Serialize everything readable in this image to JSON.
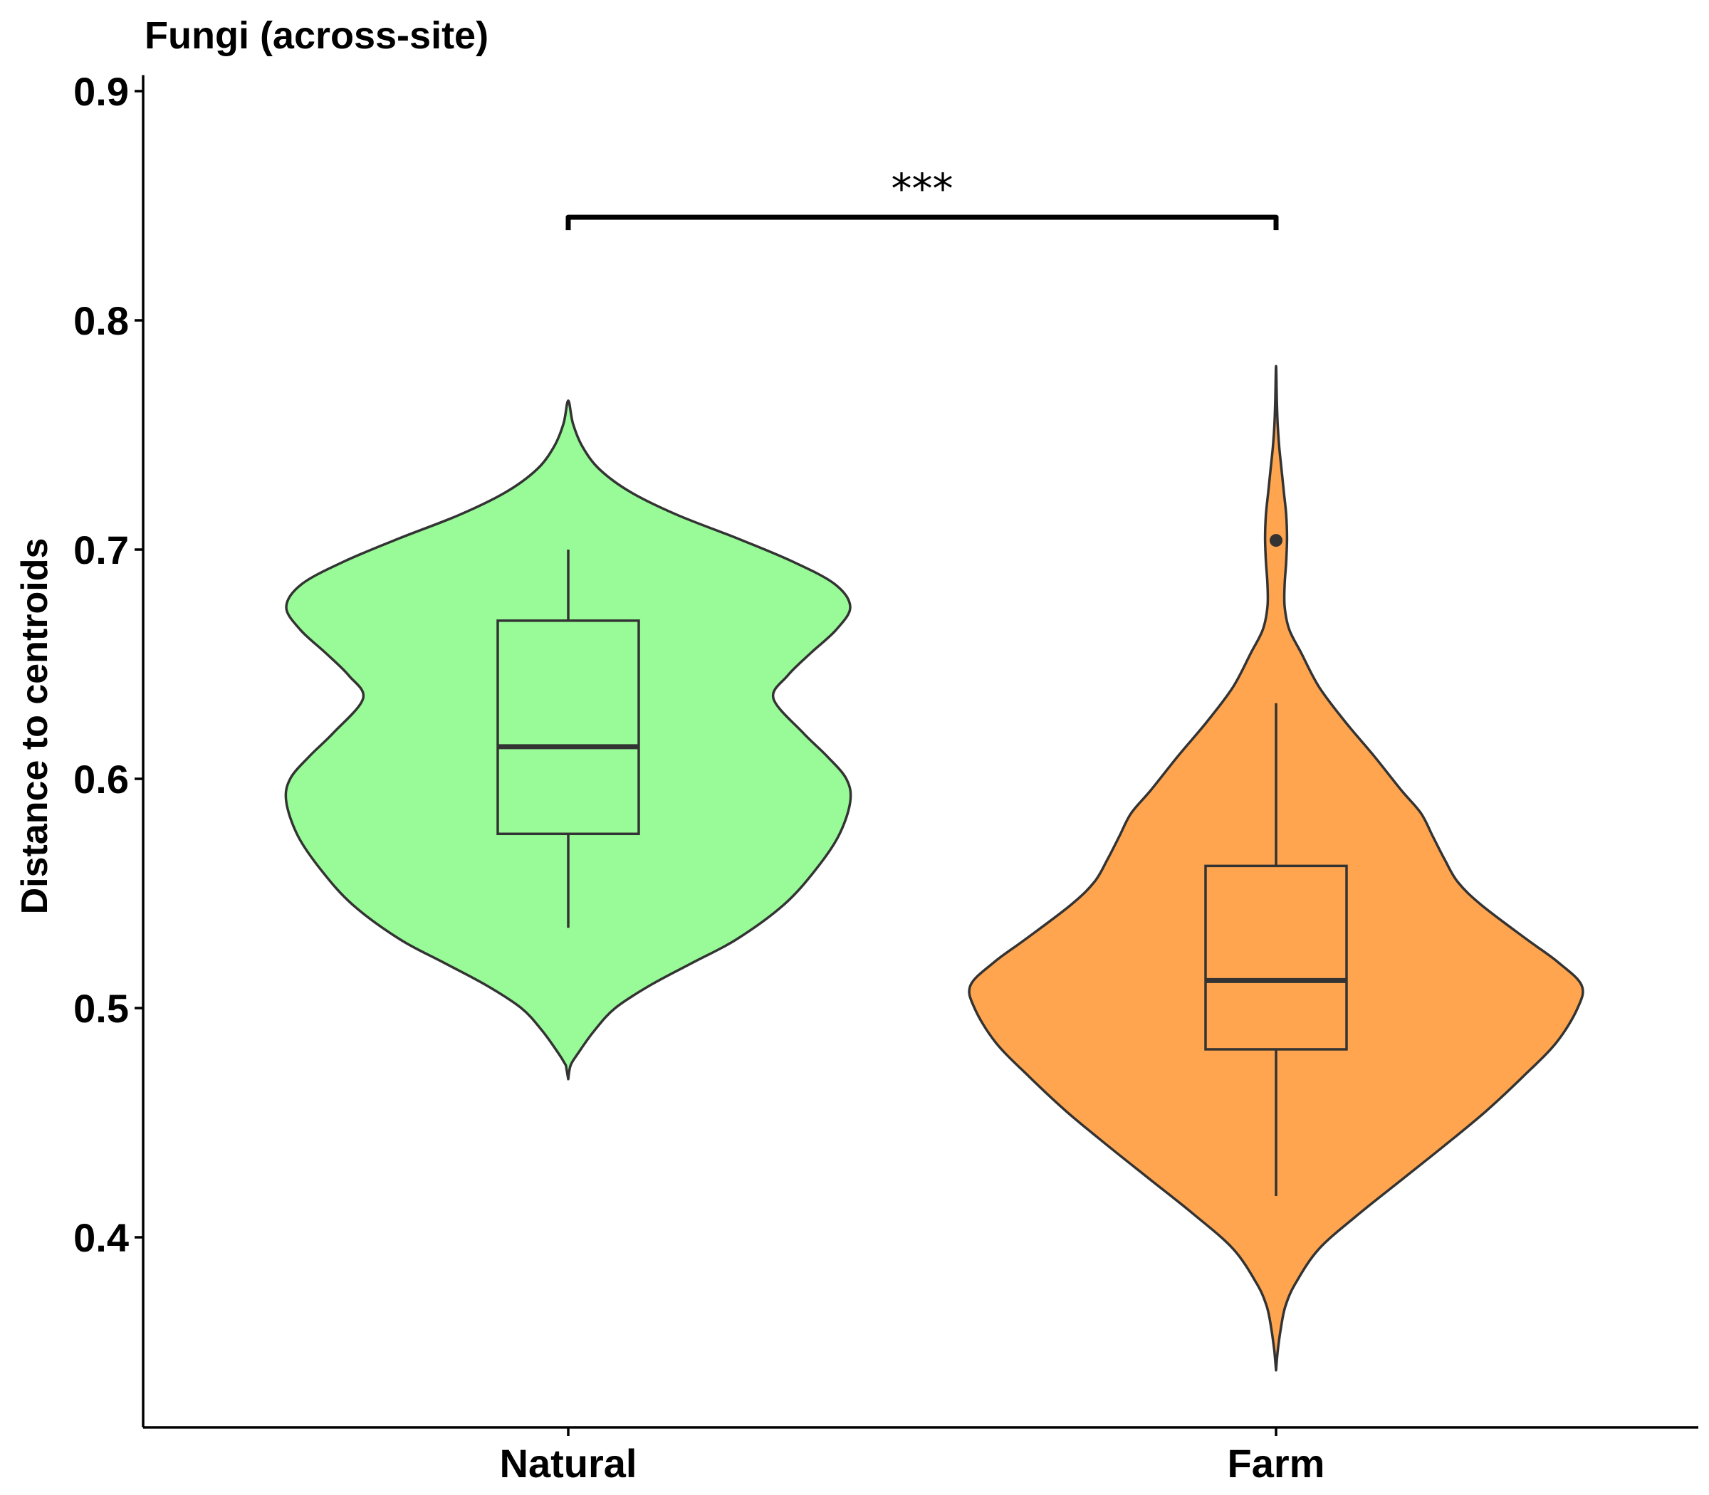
{
  "chart_data": {
    "type": "violin",
    "title": "Fungi (across-site)",
    "xlabel": "",
    "ylabel": "Distance to centroids",
    "ylim": [
      0.318,
      0.907
    ],
    "yticks": [
      0.4,
      0.5,
      0.6,
      0.7,
      0.8,
      0.9
    ],
    "ytick_labels": [
      "0.4",
      "0.5",
      "0.6",
      "0.7",
      "0.8",
      "0.9"
    ],
    "categories": [
      "Natural",
      "Farm"
    ],
    "grid": false,
    "legend": "none",
    "groups": [
      {
        "name": "Natural",
        "color": "#98FB98",
        "violin_halfwidth": [
          [
            0.469,
            0.0
          ],
          [
            0.475,
            0.003
          ],
          [
            0.48,
            0.012
          ],
          [
            0.49,
            0.033
          ],
          [
            0.5,
            0.06
          ],
          [
            0.51,
            0.105
          ],
          [
            0.52,
            0.16
          ],
          [
            0.53,
            0.215
          ],
          [
            0.545,
            0.275
          ],
          [
            0.56,
            0.315
          ],
          [
            0.575,
            0.345
          ],
          [
            0.59,
            0.36
          ],
          [
            0.6,
            0.355
          ],
          [
            0.61,
            0.33
          ],
          [
            0.62,
            0.3
          ],
          [
            0.635,
            0.262
          ],
          [
            0.645,
            0.28
          ],
          [
            0.655,
            0.31
          ],
          [
            0.665,
            0.342
          ],
          [
            0.675,
            0.36
          ],
          [
            0.685,
            0.34
          ],
          [
            0.695,
            0.285
          ],
          [
            0.705,
            0.215
          ],
          [
            0.715,
            0.14
          ],
          [
            0.725,
            0.08
          ],
          [
            0.735,
            0.04
          ],
          [
            0.745,
            0.018
          ],
          [
            0.755,
            0.006
          ],
          [
            0.765,
            0.0
          ]
        ],
        "box": {
          "whisker_low": 0.535,
          "q1": 0.576,
          "median": 0.614,
          "q3": 0.669,
          "whisker_high": 0.7
        },
        "outliers": []
      },
      {
        "name": "Farm",
        "color": "#FFA54F",
        "violin_halfwidth": [
          [
            0.342,
            0.0
          ],
          [
            0.35,
            0.002
          ],
          [
            0.36,
            0.006
          ],
          [
            0.37,
            0.012
          ],
          [
            0.38,
            0.025
          ],
          [
            0.395,
            0.055
          ],
          [
            0.41,
            0.105
          ],
          [
            0.425,
            0.16
          ],
          [
            0.44,
            0.215
          ],
          [
            0.455,
            0.268
          ],
          [
            0.47,
            0.315
          ],
          [
            0.485,
            0.358
          ],
          [
            0.5,
            0.385
          ],
          [
            0.51,
            0.39
          ],
          [
            0.52,
            0.36
          ],
          [
            0.53,
            0.32
          ],
          [
            0.545,
            0.262
          ],
          [
            0.555,
            0.232
          ],
          [
            0.565,
            0.215
          ],
          [
            0.575,
            0.2
          ],
          [
            0.585,
            0.185
          ],
          [
            0.595,
            0.16
          ],
          [
            0.61,
            0.125
          ],
          [
            0.625,
            0.088
          ],
          [
            0.64,
            0.055
          ],
          [
            0.655,
            0.032
          ],
          [
            0.665,
            0.017
          ],
          [
            0.675,
            0.011
          ],
          [
            0.685,
            0.011
          ],
          [
            0.695,
            0.013
          ],
          [
            0.705,
            0.014
          ],
          [
            0.715,
            0.013
          ],
          [
            0.725,
            0.01
          ],
          [
            0.735,
            0.007
          ],
          [
            0.745,
            0.004
          ],
          [
            0.755,
            0.002
          ],
          [
            0.765,
            0.001
          ],
          [
            0.78,
            0.0
          ]
        ],
        "box": {
          "whisker_low": 0.418,
          "q1": 0.482,
          "median": 0.512,
          "q3": 0.562,
          "whisker_high": 0.633
        },
        "outliers": [
          0.704
        ]
      }
    ],
    "significance": {
      "label": "***",
      "from": "Natural",
      "to": "Farm",
      "y": 0.845
    }
  }
}
